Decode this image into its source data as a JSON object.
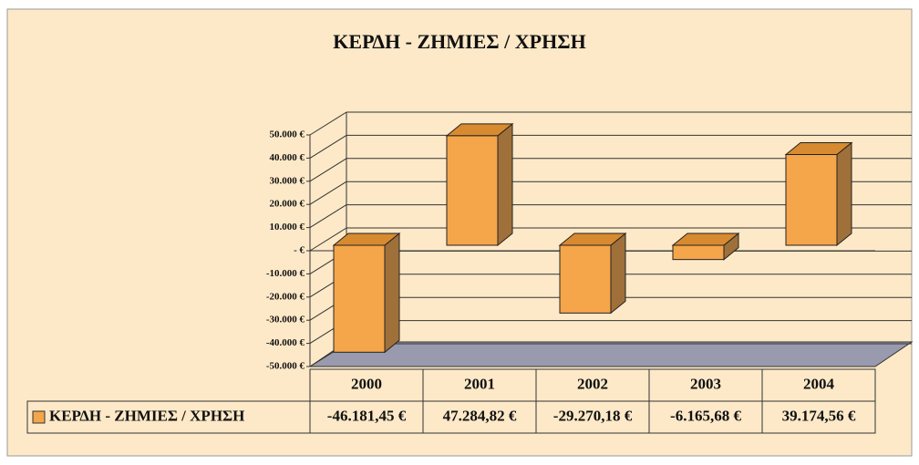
{
  "chart_data": {
    "type": "bar3d",
    "title": "ΚΕΡΔΗ - ΖΗΜΙΕΣ / ΧΡΗΣΗ",
    "categories": [
      "2000",
      "2001",
      "2002",
      "2003",
      "2004"
    ],
    "series": [
      {
        "name": "ΚΕΡΔΗ - ΖΗΜΙΕΣ / ΧΡΗΣΗ",
        "color": "#f5a54a",
        "values": [
          -46181.45,
          47284.82,
          -29270.18,
          -6165.68,
          39174.56
        ],
        "value_labels": [
          "-46.181,45 €",
          "47.284,82 €",
          "-29.270,18 €",
          "-6.165,68 €",
          "39.174,56 €"
        ]
      }
    ],
    "ylim": [
      -50000,
      50000
    ],
    "yticks": [
      {
        "value": 50000,
        "label": "50.000 €"
      },
      {
        "value": 40000,
        "label": "40.000 €"
      },
      {
        "value": 30000,
        "label": "30.000 €"
      },
      {
        "value": 20000,
        "label": "20.000 €"
      },
      {
        "value": 10000,
        "label": "10.000 €"
      },
      {
        "value": 0,
        "label": "-   €"
      },
      {
        "value": -10000,
        "label": "-10.000 €"
      },
      {
        "value": -20000,
        "label": "-20.000 €"
      },
      {
        "value": -30000,
        "label": "-30.000 €"
      },
      {
        "value": -40000,
        "label": "-40.000 €"
      },
      {
        "value": -50000,
        "label": "-50.000 €"
      }
    ],
    "grid": true
  }
}
